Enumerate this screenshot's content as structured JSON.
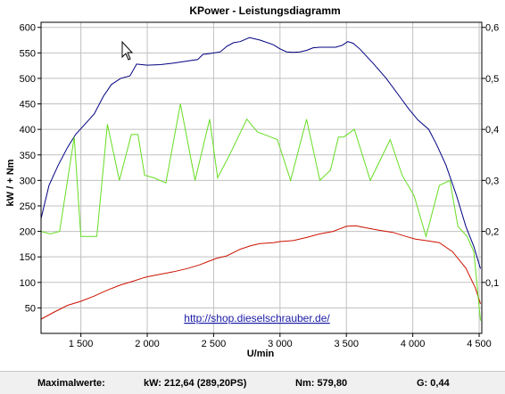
{
  "chart_data": {
    "type": "line",
    "title": "KPower - Leistungsdiagramm",
    "xlabel": "U/min",
    "ylabel_left": "kW / + Nm",
    "xlim": [
      1200,
      4520
    ],
    "ylim_left": [
      0,
      610
    ],
    "ylim_right": [
      0,
      0.61
    ],
    "x_ticks": [
      {
        "value": 1500,
        "label": "1 500"
      },
      {
        "value": 2000,
        "label": "2 000"
      },
      {
        "value": 2500,
        "label": "2 500"
      },
      {
        "value": 3000,
        "label": "3 000"
      },
      {
        "value": 3500,
        "label": "3 500"
      },
      {
        "value": 4000,
        "label": "4 000"
      },
      {
        "value": 4500,
        "label": "4 500"
      }
    ],
    "y_ticks_left": [
      {
        "value": 50,
        "label": "50"
      },
      {
        "value": 100,
        "label": "100"
      },
      {
        "value": 150,
        "label": "150"
      },
      {
        "value": 200,
        "label": "200"
      },
      {
        "value": 250,
        "label": "250"
      },
      {
        "value": 300,
        "label": "300"
      },
      {
        "value": 350,
        "label": "350"
      },
      {
        "value": 400,
        "label": "400"
      },
      {
        "value": 450,
        "label": "450"
      },
      {
        "value": 500,
        "label": "500"
      },
      {
        "value": 550,
        "label": "550"
      },
      {
        "value": 600,
        "label": "600"
      }
    ],
    "y_ticks_right": [
      {
        "value": 0.1,
        "label": "0,1"
      },
      {
        "value": 0.2,
        "label": "0,2"
      },
      {
        "value": 0.3,
        "label": "0,3"
      },
      {
        "value": 0.4,
        "label": "0,4"
      },
      {
        "value": 0.5,
        "label": "0,5"
      },
      {
        "value": 0.6,
        "label": "0,6"
      }
    ],
    "grid": true,
    "annotation": "http://shop.dieselschrauber.de/",
    "colors": {
      "torque": "#000080",
      "power": "#cc1100",
      "g": "#66dd22",
      "grid": "#c0c0c0"
    },
    "series": [
      {
        "axis": "left",
        "color": "#000080",
        "points": [
          [
            1200,
            225
          ],
          [
            1260,
            290
          ],
          [
            1330,
            330
          ],
          [
            1400,
            365
          ],
          [
            1460,
            390
          ],
          [
            1530,
            410
          ],
          [
            1600,
            430
          ],
          [
            1670,
            465
          ],
          [
            1730,
            488
          ],
          [
            1800,
            500
          ],
          [
            1870,
            505
          ],
          [
            1920,
            528
          ],
          [
            1960,
            527
          ],
          [
            2000,
            526
          ],
          [
            2100,
            527
          ],
          [
            2200,
            530
          ],
          [
            2300,
            534
          ],
          [
            2380,
            537
          ],
          [
            2420,
            547
          ],
          [
            2480,
            549
          ],
          [
            2550,
            552
          ],
          [
            2600,
            563
          ],
          [
            2650,
            570
          ],
          [
            2700,
            572
          ],
          [
            2770,
            580
          ],
          [
            2850,
            575
          ],
          [
            2950,
            566
          ],
          [
            3000,
            558
          ],
          [
            3050,
            552
          ],
          [
            3100,
            551
          ],
          [
            3150,
            552
          ],
          [
            3200,
            555
          ],
          [
            3250,
            560
          ],
          [
            3300,
            561
          ],
          [
            3350,
            561
          ],
          [
            3420,
            561
          ],
          [
            3470,
            565
          ],
          [
            3510,
            572
          ],
          [
            3550,
            569
          ],
          [
            3600,
            558
          ],
          [
            3700,
            530
          ],
          [
            3800,
            500
          ],
          [
            3900,
            465
          ],
          [
            3970,
            440
          ],
          [
            4040,
            418
          ],
          [
            4120,
            400
          ],
          [
            4180,
            370
          ],
          [
            4250,
            330
          ],
          [
            4330,
            270
          ],
          [
            4400,
            210
          ],
          [
            4460,
            170
          ],
          [
            4510,
            127
          ]
        ]
      },
      {
        "axis": "left",
        "color": "#cc1100",
        "points": [
          [
            1200,
            28
          ],
          [
            1300,
            42
          ],
          [
            1400,
            55
          ],
          [
            1500,
            63
          ],
          [
            1600,
            73
          ],
          [
            1700,
            85
          ],
          [
            1800,
            95
          ],
          [
            1900,
            103
          ],
          [
            1960,
            108
          ],
          [
            2000,
            111
          ],
          [
            2100,
            116
          ],
          [
            2200,
            121
          ],
          [
            2300,
            127
          ],
          [
            2400,
            135
          ],
          [
            2450,
            140
          ],
          [
            2520,
            147
          ],
          [
            2600,
            152
          ],
          [
            2700,
            165
          ],
          [
            2780,
            172
          ],
          [
            2850,
            176
          ],
          [
            2950,
            178
          ],
          [
            3000,
            180
          ],
          [
            3100,
            182
          ],
          [
            3200,
            188
          ],
          [
            3300,
            195
          ],
          [
            3400,
            200
          ],
          [
            3500,
            210
          ],
          [
            3570,
            211
          ],
          [
            3650,
            207
          ],
          [
            3750,
            202
          ],
          [
            3850,
            198
          ],
          [
            3950,
            190
          ],
          [
            4020,
            185
          ],
          [
            4100,
            182
          ],
          [
            4200,
            178
          ],
          [
            4300,
            160
          ],
          [
            4400,
            128
          ],
          [
            4470,
            90
          ],
          [
            4510,
            58
          ]
        ]
      },
      {
        "axis": "right",
        "color": "#66dd22",
        "points": [
          [
            1200,
            0.2
          ],
          [
            1270,
            0.195
          ],
          [
            1340,
            0.2
          ],
          [
            1450,
            0.385
          ],
          [
            1500,
            0.19
          ],
          [
            1560,
            0.19
          ],
          [
            1620,
            0.19
          ],
          [
            1700,
            0.41
          ],
          [
            1790,
            0.3
          ],
          [
            1880,
            0.39
          ],
          [
            1930,
            0.39
          ],
          [
            1980,
            0.31
          ],
          [
            2050,
            0.305
          ],
          [
            2140,
            0.295
          ],
          [
            2250,
            0.45
          ],
          [
            2360,
            0.3
          ],
          [
            2470,
            0.42
          ],
          [
            2530,
            0.305
          ],
          [
            2620,
            0.35
          ],
          [
            2750,
            0.42
          ],
          [
            2830,
            0.395
          ],
          [
            2930,
            0.385
          ],
          [
            2980,
            0.38
          ],
          [
            3080,
            0.3
          ],
          [
            3200,
            0.42
          ],
          [
            3300,
            0.3
          ],
          [
            3380,
            0.32
          ],
          [
            3440,
            0.385
          ],
          [
            3480,
            0.385
          ],
          [
            3560,
            0.4
          ],
          [
            3680,
            0.3
          ],
          [
            3830,
            0.38
          ],
          [
            3920,
            0.31
          ],
          [
            4010,
            0.27
          ],
          [
            4100,
            0.19
          ],
          [
            4200,
            0.29
          ],
          [
            4280,
            0.3
          ],
          [
            4340,
            0.21
          ],
          [
            4410,
            0.19
          ],
          [
            4460,
            0.16
          ],
          [
            4510,
            0.025
          ]
        ]
      }
    ]
  },
  "statusbar": {
    "max_label": "Maximalwerte:",
    "kw_value": "kW: 212,64 (289,20PS)",
    "nm_value": "Nm: 579,80",
    "g_value": "G: 0,44"
  }
}
